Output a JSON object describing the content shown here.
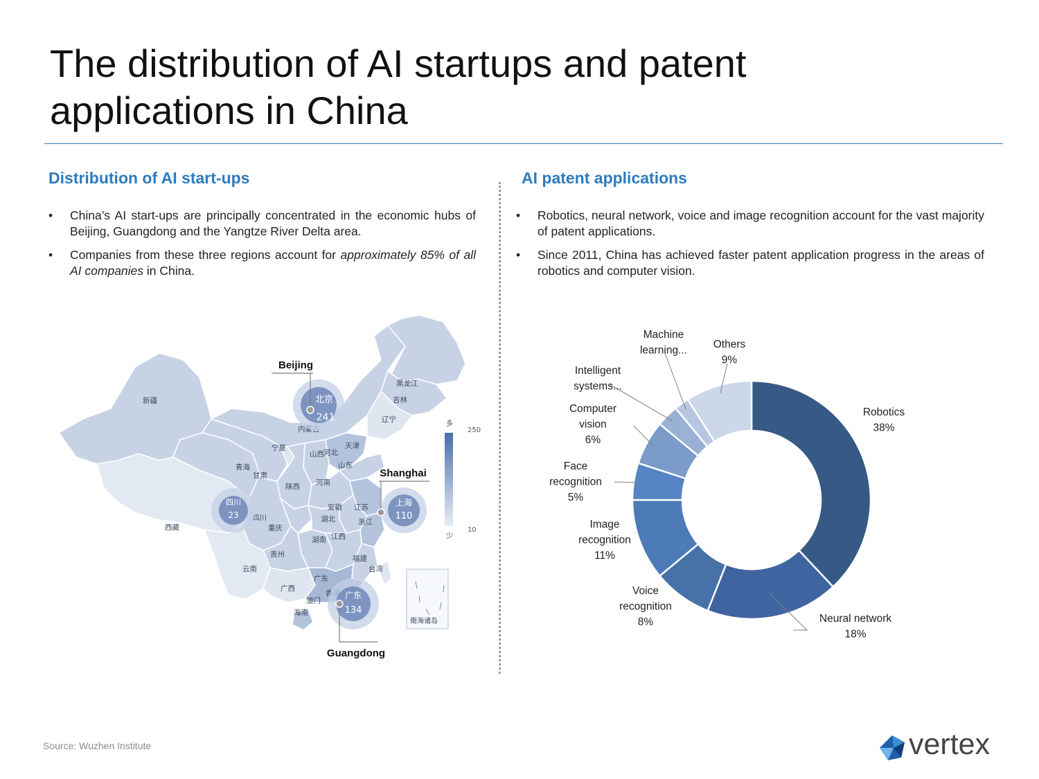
{
  "title": "The distribution of AI startups and patent applications in China",
  "left": {
    "heading": "Distribution of AI start-ups",
    "bullet_char": "•",
    "bullet1": "China’s AI start-ups are principally concentrated in the economic hubs of Beijing, Guangdong and the Yangtze River Delta area.",
    "bullet2_pre": "Companies from these three regions account for ",
    "bullet2_em": "approximately 85% of all AI companies",
    "bullet2_post": " in China."
  },
  "right": {
    "heading": "AI patent applications",
    "bullet1": "Robotics, neural network, voice and image recognition account for the vast majority of patent applications.",
    "bullet2": "Since 2011, China has achieved faster patent application progress in the areas of robotics and computer vision."
  },
  "map": {
    "callouts": [
      {
        "label": "Beijing",
        "name_cn": "北京",
        "value": "241"
      },
      {
        "label": "Shanghai",
        "name_cn": "上海",
        "value": "110"
      },
      {
        "label": "Guangdong",
        "name_cn": "广东",
        "value": "134"
      },
      {
        "name_cn": "四川",
        "value": "23"
      }
    ],
    "provinces": [
      "新疆",
      "西藏",
      "青海",
      "甘肃",
      "宁夏",
      "内蒙古",
      "黑龙江",
      "吉林",
      "辽宁",
      "天津",
      "山西",
      "河北",
      "山东",
      "陕西",
      "河南",
      "四川",
      "重庆",
      "湖北",
      "安徽",
      "江苏",
      "浙江",
      "湖南",
      "江西",
      "贵州",
      "云南",
      "广西",
      "福建",
      "台湾",
      "广东",
      "香港",
      "澳门",
      "海南",
      "南海诸岛"
    ],
    "legend": {
      "high_label": "多",
      "high_value": "250",
      "low_label": "少",
      "low_value": "10"
    },
    "colors": {
      "base": "#dfe6f0",
      "mid": "#c7d3e5",
      "strong": "#a7b8d4",
      "edge": "#ffffff",
      "bubble": "#6e87b8",
      "bubble_ring": "#c3d0e6"
    }
  },
  "chart_data": {
    "type": "pie",
    "variant": "donut",
    "title": "",
    "labels": [
      "Robotics",
      "Neural network",
      "Voice recognition",
      "Image recognition",
      "Face recognition",
      "Computer vision",
      "Intelligent systems...",
      "Machine learning...",
      "Others"
    ],
    "values": [
      38,
      18,
      8,
      11,
      5,
      6,
      3,
      2,
      9
    ],
    "display_labels": [
      [
        "Robotics",
        "38%"
      ],
      [
        "Neural network",
        "18%"
      ],
      [
        "Voice",
        "recognition",
        "8%"
      ],
      [
        "Image",
        "recognition",
        "11%"
      ],
      [
        "Face",
        "recognition",
        "5%"
      ],
      [
        "Computer",
        "vision",
        "6%"
      ],
      [
        "Intelligent",
        "systems..."
      ],
      [
        "Machine",
        "learning..."
      ],
      [
        "Others",
        "9%"
      ]
    ],
    "colors": [
      "#365a85",
      "#3f65a0",
      "#4772a8",
      "#4c7bb8",
      "#5585c4",
      "#7b9bc9",
      "#9ab1d6",
      "#b7c7e2",
      "#ccd7ea"
    ],
    "legend": "none"
  },
  "source": "Source: Wuzhen Institute",
  "logo": {
    "text": "vertex",
    "colors": [
      "#1f5fa6",
      "#3b8fd4",
      "#0f3f7a",
      "#6fb3e8"
    ]
  }
}
